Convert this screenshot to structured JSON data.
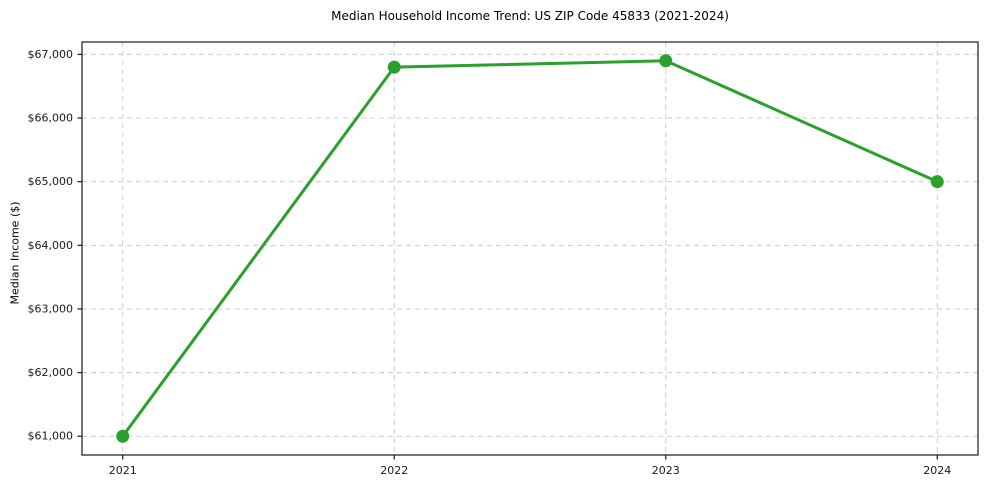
{
  "figure": {
    "background_color": "#ffffff"
  },
  "chart_data": {
    "type": "line",
    "title": "Median Household Income Trend: US ZIP Code 45833 (2021-2024)",
    "xlabel": "",
    "ylabel": "Median Income ($)",
    "categories": [
      2021,
      2022,
      2023,
      2024
    ],
    "x_tick_labels": [
      "2021",
      "2022",
      "2023",
      "2024"
    ],
    "series": [
      {
        "name": "Median Household Income",
        "values": [
          61000,
          66800,
          66900,
          65000
        ]
      }
    ],
    "y_ticks": [
      61000,
      62000,
      63000,
      64000,
      65000,
      66000,
      67000
    ],
    "y_tick_labels": [
      "$61,000",
      "$62,000",
      "$63,000",
      "$64,000",
      "$65,000",
      "$66,000",
      "$67,000"
    ],
    "xlim": [
      2020.85,
      2024.15
    ],
    "ylim": [
      60705,
      67195
    ],
    "grid": "dashed, both axes",
    "legend_position": "none",
    "line_color": "#2ca02c",
    "marker": "circle",
    "grid_color": "#cccccc",
    "spine_color": "#1a1a1a",
    "tick_label_color": "#1a1a1a"
  }
}
